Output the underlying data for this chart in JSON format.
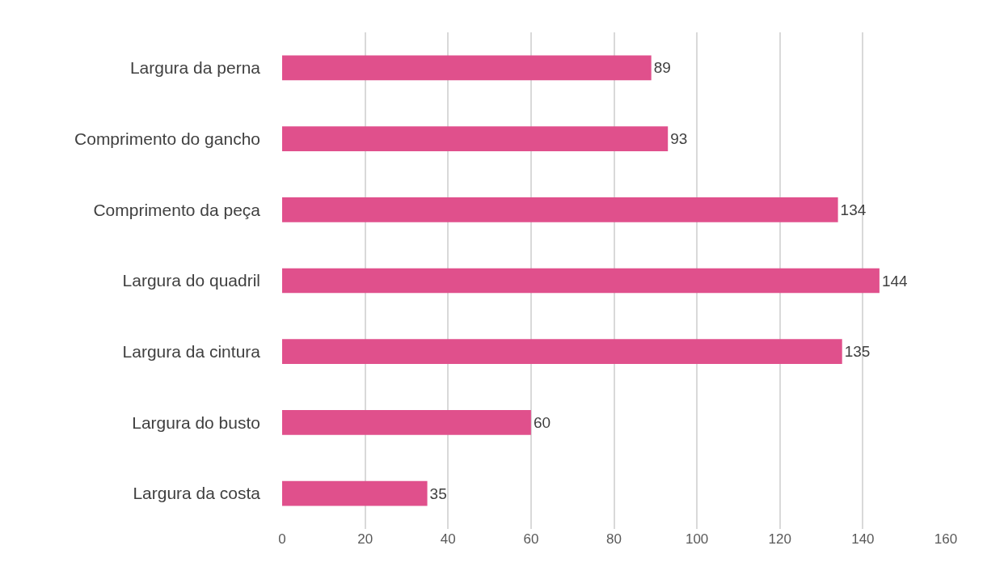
{
  "chart_data": {
    "type": "bar",
    "orientation": "horizontal",
    "categories": [
      "Largura da perna",
      "Comprimento do gancho",
      "Comprimento da peça",
      "Largura do quadril",
      "Largura da cintura",
      "Largura do busto",
      "Largura da costa"
    ],
    "values": [
      89,
      93,
      134,
      144,
      135,
      60,
      35
    ],
    "color": "#e0508c",
    "xlim": [
      0,
      160
    ],
    "xticks": [
      0,
      20,
      40,
      60,
      80,
      100,
      120,
      140,
      160
    ],
    "grid": "x",
    "data_labels": true
  }
}
